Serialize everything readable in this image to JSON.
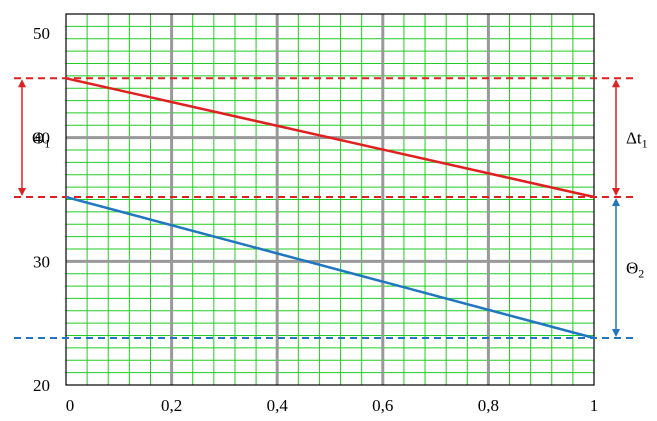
{
  "chart_data": {
    "type": "line",
    "xlim": [
      0,
      1
    ],
    "ylim": [
      20,
      50
    ],
    "x_ticks": [
      {
        "value": 0,
        "label": "0"
      },
      {
        "value": 0.2,
        "label": "0,2"
      },
      {
        "value": 0.4,
        "label": "0,4"
      },
      {
        "value": 0.6,
        "label": "0,6"
      },
      {
        "value": 0.8,
        "label": "0,8"
      },
      {
        "value": 1,
        "label": "1"
      }
    ],
    "y_ticks": [
      {
        "value": 20,
        "label": "20"
      },
      {
        "value": 30,
        "label": "30"
      },
      {
        "value": 40,
        "label": "40"
      },
      {
        "value": 50,
        "label": "50"
      }
    ],
    "grid": true,
    "grid_minor_color": "#22cc22",
    "grid_major_color": "#999999",
    "series": [
      {
        "color": "#e02020",
        "points": [
          [
            0,
            44.8
          ],
          [
            1,
            35.2
          ]
        ]
      },
      {
        "color": "#2077c0",
        "points": [
          [
            0,
            35.2
          ],
          [
            1,
            23.8
          ]
        ]
      }
    ],
    "reference_lines": [
      {
        "y": 44.8,
        "color": "#e02020",
        "style": "dashed"
      },
      {
        "y": 35.2,
        "color": "#e02020",
        "style": "dashed"
      },
      {
        "y": 23.8,
        "color": "#2077c0",
        "style": "dashed"
      }
    ],
    "annotations": [
      {
        "label": "Θ",
        "sub": "1",
        "side": "left",
        "from": 35.2,
        "to": 44.8,
        "color": "#e02020"
      },
      {
        "label": "Δt",
        "sub": "1",
        "side": "right",
        "from": 35.2,
        "to": 44.8,
        "color": "#e02020"
      },
      {
        "label": "Θ",
        "sub": "2",
        "side": "right",
        "from": 23.8,
        "to": 35.2,
        "color": "#2077c0"
      }
    ]
  }
}
